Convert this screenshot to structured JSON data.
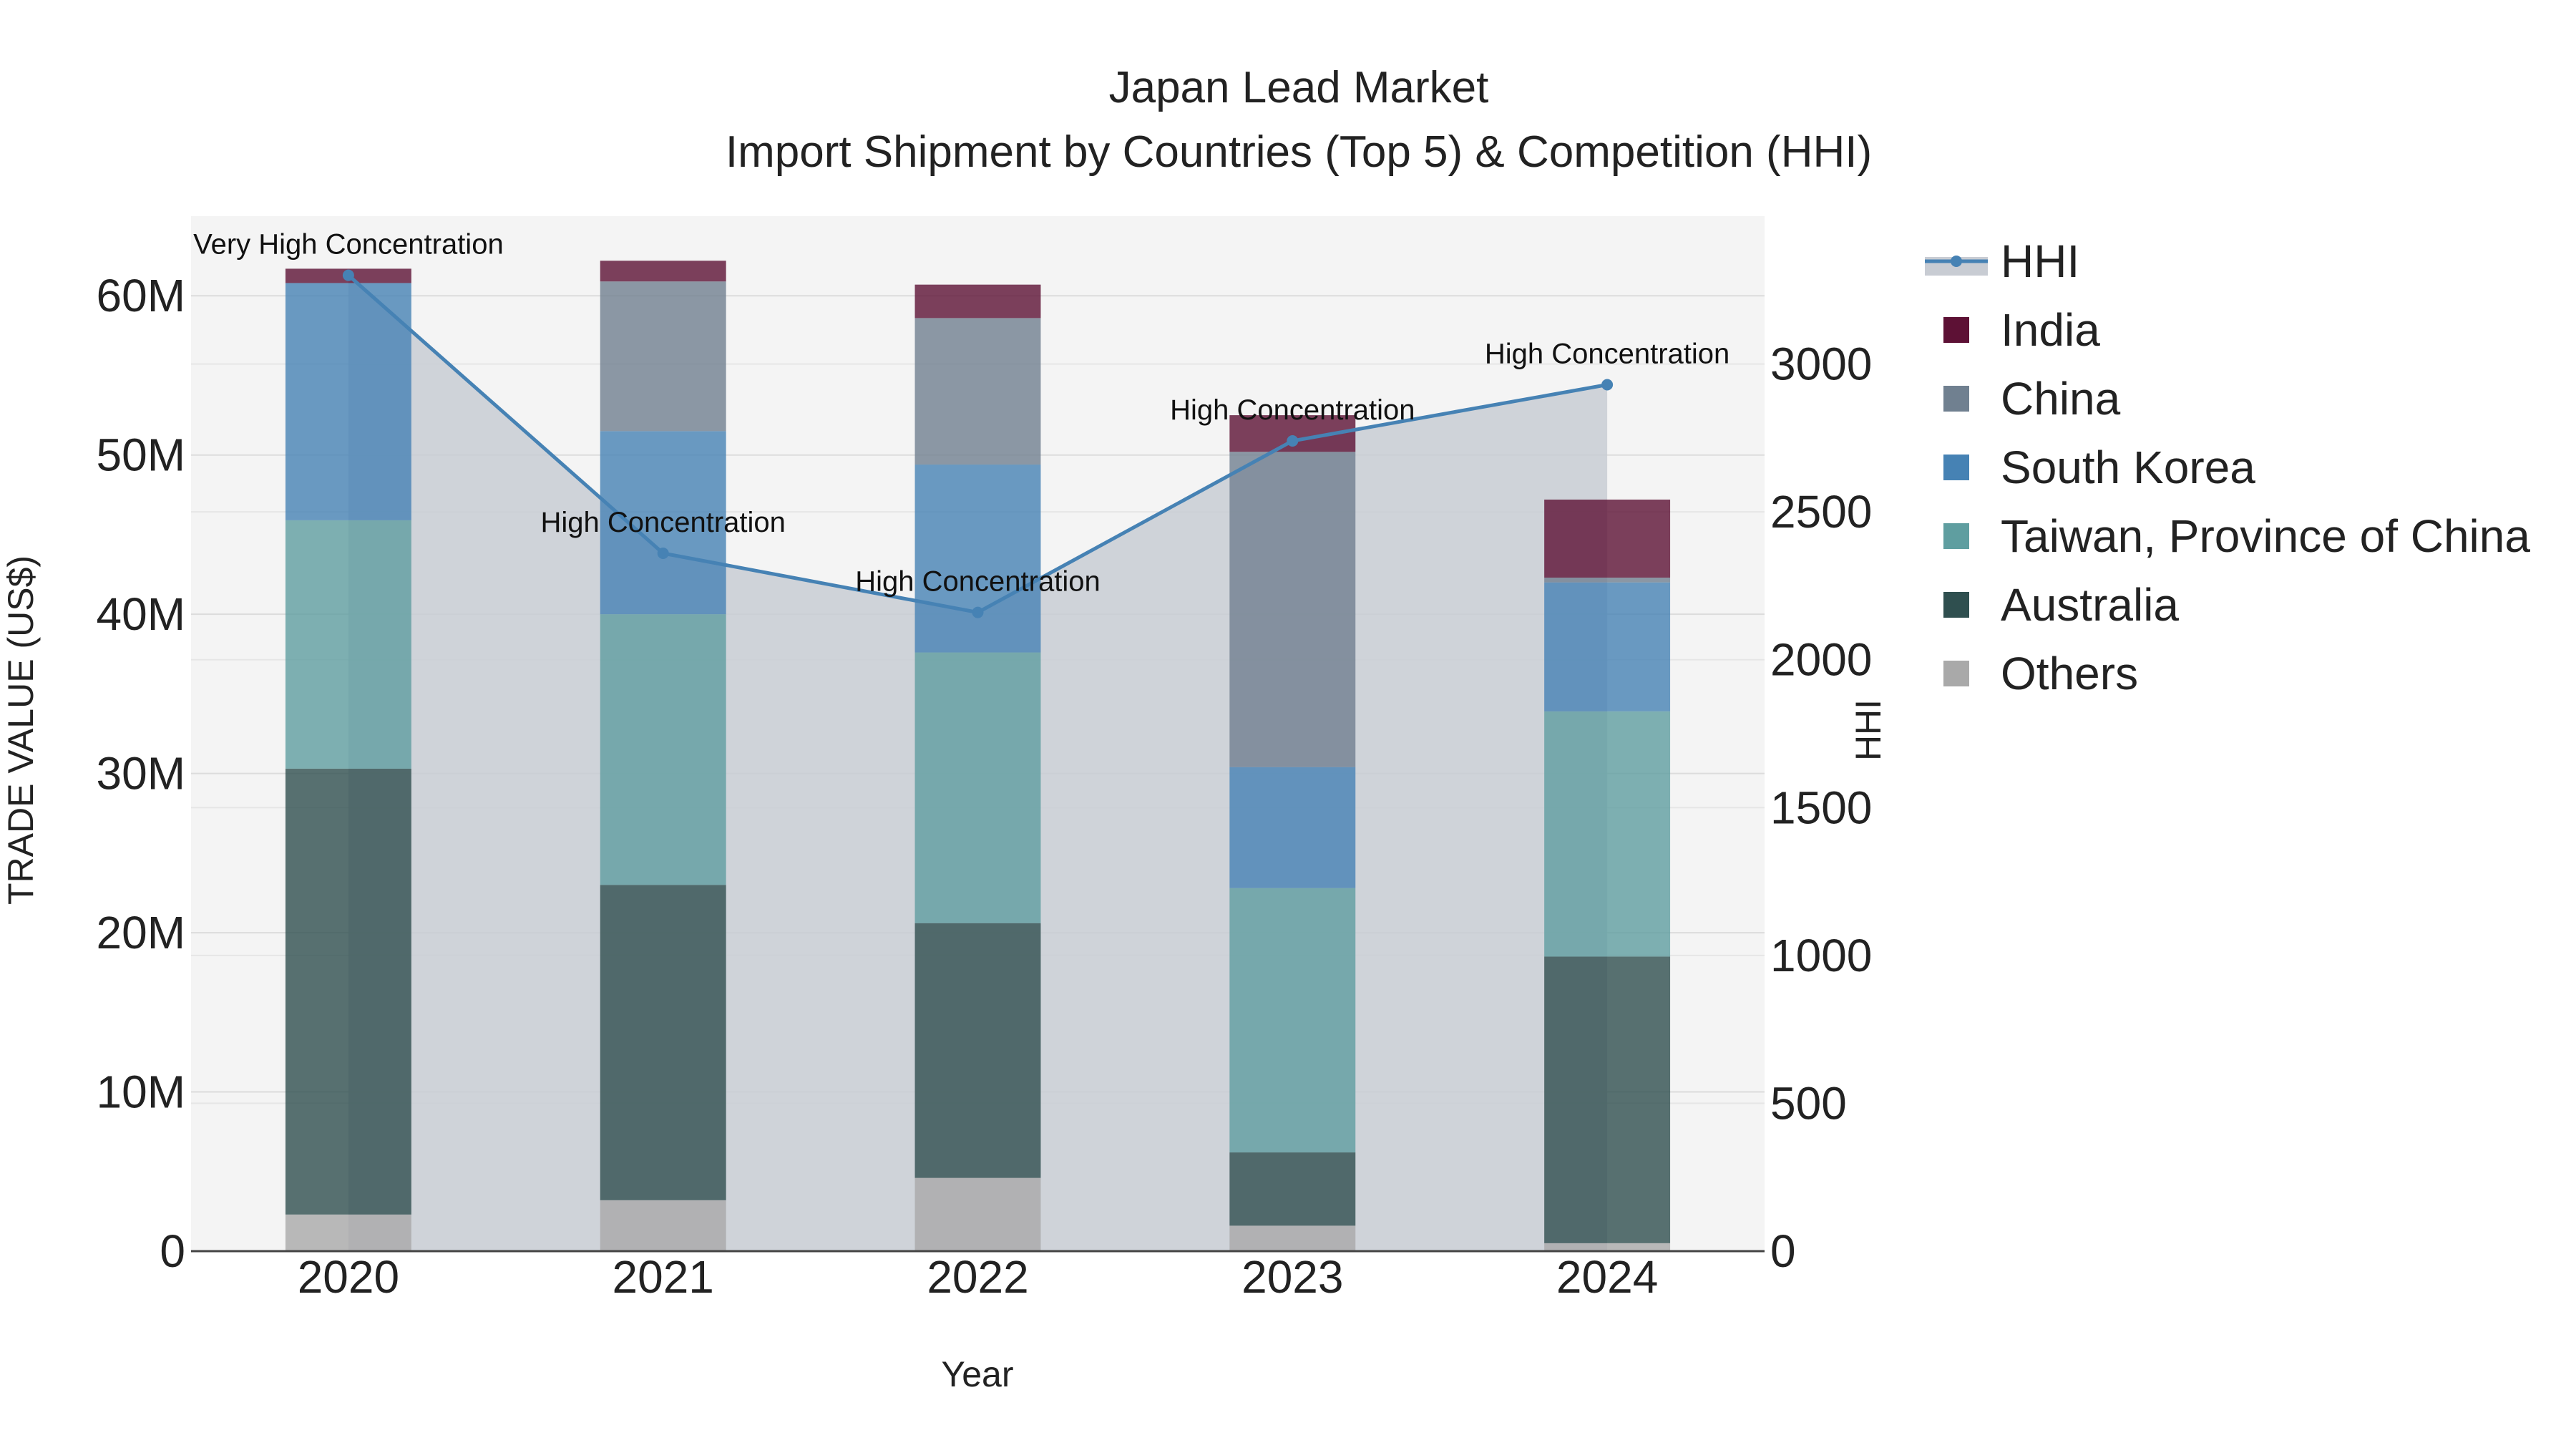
{
  "chart_data": {
    "type": "bar",
    "title_line1": "Japan Lead Market",
    "title_line2": "Import Shipment by Countries (Top 5) & Competition (HHI)",
    "xlabel": "Year",
    "ylabel": "TRADE VALUE (US$)",
    "y2label": "HHI",
    "categories": [
      "2020",
      "2021",
      "2022",
      "2023",
      "2024"
    ],
    "ylim": [
      0,
      65000000
    ],
    "y_ticks": [
      0,
      10000000,
      20000000,
      30000000,
      40000000,
      50000000,
      60000000
    ],
    "y_tick_labels": [
      "0",
      "10M",
      "20M",
      "30M",
      "40M",
      "50M",
      "60M"
    ],
    "y2lim": [
      0,
      3500
    ],
    "y2_ticks": [
      0,
      500,
      1000,
      1500,
      2000,
      2500,
      3000
    ],
    "y2_tick_labels": [
      "0",
      "500",
      "1000",
      "1500",
      "2000",
      "2500",
      "3000"
    ],
    "series": [
      {
        "name": "Others",
        "color": "#a9a9a9",
        "values": [
          2300000,
          3200000,
          4600000,
          1600000,
          500000
        ]
      },
      {
        "name": "Australia",
        "color": "#2f4f4f",
        "values": [
          28000000,
          19800000,
          16000000,
          4600000,
          18000000
        ]
      },
      {
        "name": "Taiwan, Province of China",
        "color": "#5f9ea0",
        "values": [
          15600000,
          17000000,
          17000000,
          16600000,
          15400000
        ]
      },
      {
        "name": "South Korea",
        "color": "#4682b4",
        "values": [
          14900000,
          11500000,
          11800000,
          7600000,
          8100000
        ]
      },
      {
        "name": "China",
        "color": "#708090",
        "values": [
          0,
          9400000,
          9200000,
          19800000,
          300000
        ]
      },
      {
        "name": "India",
        "color": "#5d1135",
        "values": [
          900000,
          1300000,
          2100000,
          2300000,
          4900000
        ]
      }
    ],
    "hhi": {
      "name": "HHI",
      "color": "#4682b4",
      "area_color": "#c8ccd3",
      "values": [
        3300,
        2360,
        2160,
        2740,
        2930
      ],
      "labels": [
        "Very High Concentration",
        "High Concentration",
        "High Concentration",
        "High Concentration",
        "High Concentration"
      ]
    },
    "legend_order": [
      "HHI",
      "India",
      "China",
      "South Korea",
      "Taiwan, Province of China",
      "Australia",
      "Others"
    ],
    "legend_position": "right",
    "grid": true,
    "plot_bg": "#f4f4f4"
  }
}
